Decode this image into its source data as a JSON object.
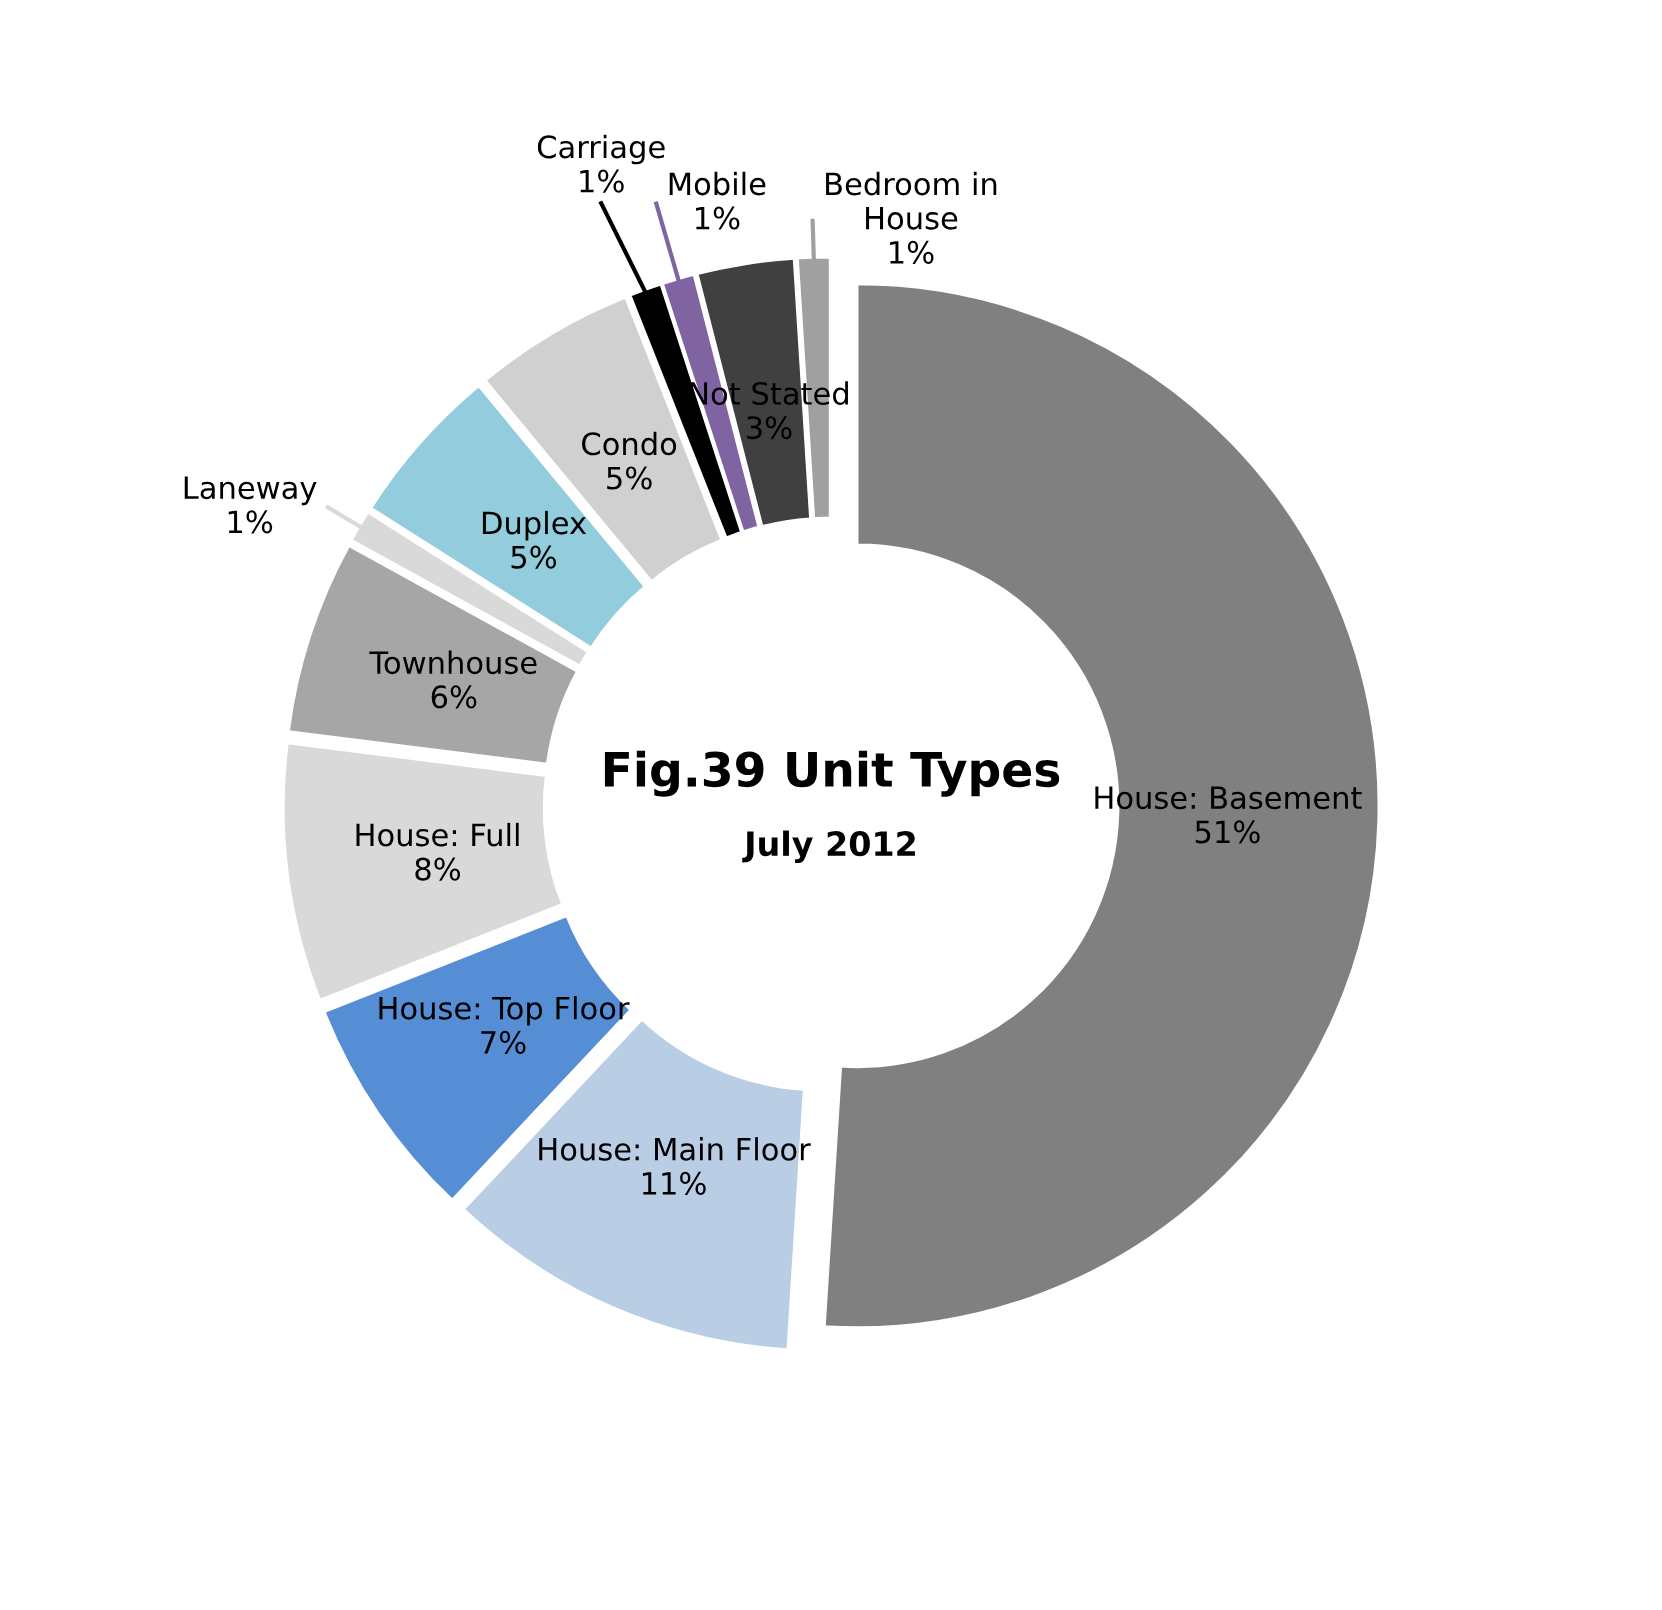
{
  "chart_data": {
    "type": "donut",
    "title": "Fig.39 Unit Types",
    "subtitle": "July 2012",
    "categories": [
      "House: Basement",
      "House: Main Floor",
      "House: Top Floor",
      "House: Full",
      "Townhouse",
      "Laneway",
      "Duplex",
      "Condo",
      "Carriage",
      "Mobile",
      "Not Stated",
      "Bedroom in House"
    ],
    "values": [
      51,
      11,
      7,
      8,
      6,
      1,
      5,
      5,
      1,
      1,
      3,
      1
    ],
    "value_labels": [
      "51%",
      "11%",
      "7%",
      "8%",
      "6%",
      "1%",
      "5%",
      "5%",
      "1%",
      "1%",
      "3%",
      "1%"
    ],
    "colors": [
      "#808080",
      "#b9cde5",
      "#558ed5",
      "#d9d9d9",
      "#a6a6a6",
      "#d9d9d9",
      "#93cddd",
      "#d0d0d0",
      "#000000",
      "#8064a2",
      "#404040",
      "#a0a0a0"
    ],
    "legend": false
  }
}
